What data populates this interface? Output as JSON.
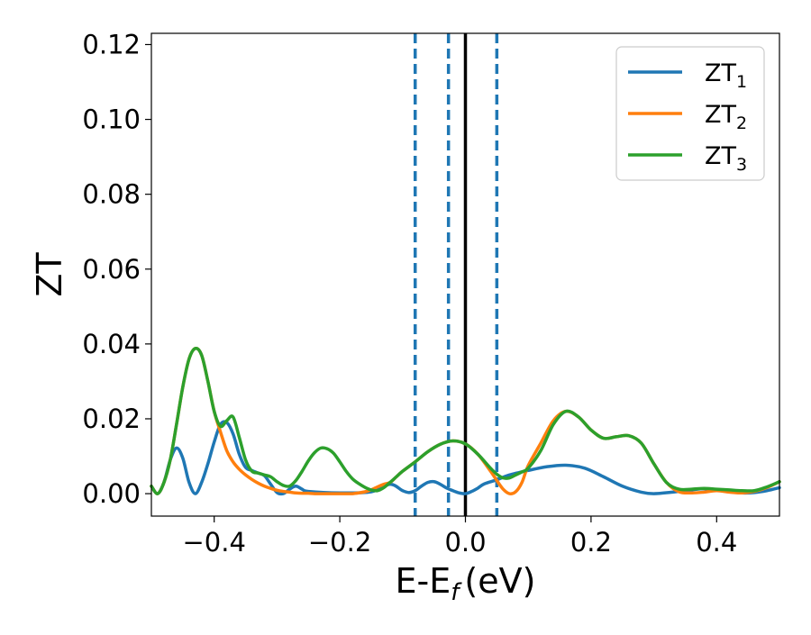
{
  "chart_data": {
    "type": "line",
    "title": "",
    "xlabel": "E-E",
    "xlabel_subscript": "f",
    "xlabel_unit": "(eV)",
    "ylabel": "ZT",
    "xlim": [
      -0.5,
      0.5
    ],
    "ylim": [
      -0.006,
      0.123
    ],
    "x_ticks": [
      -0.4,
      -0.2,
      0.0,
      0.2,
      0.4
    ],
    "x_tick_labels": [
      "−0.4",
      "−0.2",
      "0.0",
      "0.2",
      "0.4"
    ],
    "y_ticks": [
      0.0,
      0.02,
      0.04,
      0.06,
      0.08,
      0.1,
      0.12
    ],
    "y_tick_labels": [
      "0.00",
      "0.02",
      "0.04",
      "0.06",
      "0.08",
      "0.10",
      "0.12"
    ],
    "grid": false,
    "legend_position": "top-right",
    "vertical_lines": [
      {
        "x": -0.08,
        "style": "dashed",
        "color": "#1f77b4"
      },
      {
        "x": -0.027,
        "style": "dashed",
        "color": "#1f77b4"
      },
      {
        "x": 0.0,
        "style": "solid",
        "color": "#000000"
      },
      {
        "x": 0.05,
        "style": "dashed",
        "color": "#1f77b4"
      }
    ],
    "series": [
      {
        "name": "ZT",
        "subscript": "1",
        "color": "#1f77b4",
        "x": [
          -0.5,
          -0.49,
          -0.48,
          -0.47,
          -0.46,
          -0.45,
          -0.44,
          -0.43,
          -0.42,
          -0.41,
          -0.4,
          -0.39,
          -0.38,
          -0.37,
          -0.36,
          -0.35,
          -0.34,
          -0.33,
          -0.32,
          -0.31,
          -0.3,
          -0.29,
          -0.28,
          -0.27,
          -0.26,
          -0.25,
          -0.2,
          -0.15,
          -0.12,
          -0.1,
          -0.09,
          -0.08,
          -0.07,
          -0.06,
          -0.05,
          -0.04,
          -0.03,
          -0.02,
          -0.01,
          0.0,
          0.01,
          0.02,
          0.03,
          0.05,
          0.07,
          0.1,
          0.13,
          0.16,
          0.19,
          0.22,
          0.25,
          0.28,
          0.3,
          0.33,
          0.36,
          0.38,
          0.4,
          0.42,
          0.44,
          0.46,
          0.48,
          0.5
        ],
        "y": [
          0.002,
          0.0,
          0.003,
          0.009,
          0.0122,
          0.0095,
          0.003,
          0.0,
          0.003,
          0.008,
          0.0138,
          0.0185,
          0.019,
          0.016,
          0.0105,
          0.007,
          0.0062,
          0.0055,
          0.0048,
          0.0025,
          0.0003,
          0.0,
          0.0012,
          0.002,
          0.0012,
          0.0006,
          0.0002,
          0.0005,
          0.0025,
          0.0008,
          0.0003,
          0.0008,
          0.002,
          0.003,
          0.0032,
          0.0025,
          0.0015,
          0.0008,
          0.0002,
          0.0,
          0.0006,
          0.0015,
          0.0026,
          0.0037,
          0.005,
          0.0062,
          0.0072,
          0.0076,
          0.0068,
          0.0045,
          0.002,
          0.0004,
          0.0,
          0.0004,
          0.001,
          0.0013,
          0.001,
          0.0006,
          0.0002,
          0.0003,
          0.0008,
          0.0016
        ]
      },
      {
        "name": "ZT",
        "subscript": "2",
        "color": "#ff7f0e",
        "x": [
          -0.5,
          -0.49,
          -0.48,
          -0.47,
          -0.46,
          -0.45,
          -0.44,
          -0.43,
          -0.42,
          -0.41,
          -0.4,
          -0.39,
          -0.38,
          -0.37,
          -0.36,
          -0.35,
          -0.34,
          -0.33,
          -0.32,
          -0.31,
          -0.3,
          -0.29,
          -0.28,
          -0.27,
          -0.26,
          -0.25,
          -0.24,
          -0.23,
          -0.22,
          -0.21,
          -0.2,
          -0.19,
          -0.18,
          -0.17,
          -0.16,
          -0.15,
          -0.14,
          -0.13,
          -0.12,
          -0.11,
          -0.1,
          -0.08,
          -0.06,
          -0.04,
          -0.02,
          0.0,
          0.02,
          0.04,
          0.05,
          0.06,
          0.07,
          0.08,
          0.09,
          0.1,
          0.12,
          0.14,
          0.16,
          0.18,
          0.2,
          0.22,
          0.24,
          0.26,
          0.28,
          0.3,
          0.32,
          0.34,
          0.36,
          0.38,
          0.4,
          0.42,
          0.44,
          0.46,
          0.48,
          0.5
        ],
        "y": [
          0.002,
          0.0,
          0.003,
          0.009,
          0.0185,
          0.0285,
          0.036,
          0.0388,
          0.037,
          0.03,
          0.022,
          0.0165,
          0.0115,
          0.0085,
          0.0065,
          0.005,
          0.0038,
          0.0028,
          0.002,
          0.0014,
          0.0009,
          0.0006,
          0.0004,
          0.0002,
          0.0001,
          0.0001,
          0.0,
          0.0,
          0.0,
          0.0,
          0.0,
          0.0,
          0.0,
          0.0002,
          0.0005,
          0.001,
          0.0018,
          0.0025,
          0.003,
          0.0045,
          0.006,
          0.0085,
          0.0112,
          0.0132,
          0.0141,
          0.0133,
          0.0105,
          0.006,
          0.0035,
          0.0012,
          0.0,
          0.0005,
          0.003,
          0.0075,
          0.0135,
          0.0195,
          0.022,
          0.0205,
          0.017,
          0.0148,
          0.0152,
          0.0155,
          0.0135,
          0.008,
          0.003,
          0.0005,
          0.0002,
          0.0004,
          0.0008,
          0.0004,
          0.0002,
          0.0006,
          0.0016,
          0.0032
        ]
      },
      {
        "name": "ZT",
        "subscript": "3",
        "color": "#2ca02c",
        "x": [
          -0.5,
          -0.49,
          -0.48,
          -0.47,
          -0.46,
          -0.45,
          -0.44,
          -0.43,
          -0.42,
          -0.41,
          -0.4,
          -0.39,
          -0.38,
          -0.37,
          -0.36,
          -0.35,
          -0.34,
          -0.33,
          -0.32,
          -0.31,
          -0.3,
          -0.29,
          -0.28,
          -0.27,
          -0.26,
          -0.25,
          -0.24,
          -0.23,
          -0.22,
          -0.21,
          -0.2,
          -0.19,
          -0.18,
          -0.17,
          -0.16,
          -0.15,
          -0.14,
          -0.13,
          -0.12,
          -0.11,
          -0.1,
          -0.08,
          -0.06,
          -0.04,
          -0.02,
          0.0,
          0.02,
          0.04,
          0.05,
          0.06,
          0.07,
          0.08,
          0.09,
          0.1,
          0.12,
          0.14,
          0.16,
          0.18,
          0.2,
          0.22,
          0.24,
          0.26,
          0.28,
          0.3,
          0.32,
          0.34,
          0.36,
          0.38,
          0.4,
          0.42,
          0.44,
          0.46,
          0.48,
          0.5
        ],
        "y": [
          0.002,
          0.0,
          0.003,
          0.009,
          0.0185,
          0.0285,
          0.036,
          0.0388,
          0.037,
          0.03,
          0.022,
          0.018,
          0.0195,
          0.0205,
          0.015,
          0.009,
          0.006,
          0.0055,
          0.005,
          0.0045,
          0.0032,
          0.0022,
          0.002,
          0.0035,
          0.006,
          0.0088,
          0.011,
          0.0122,
          0.012,
          0.0108,
          0.0085,
          0.006,
          0.004,
          0.0027,
          0.0017,
          0.001,
          0.0008,
          0.0016,
          0.003,
          0.0045,
          0.006,
          0.0085,
          0.0112,
          0.0132,
          0.0141,
          0.0133,
          0.0105,
          0.0068,
          0.0052,
          0.0042,
          0.0042,
          0.005,
          0.0058,
          0.0068,
          0.0115,
          0.0185,
          0.022,
          0.0205,
          0.017,
          0.0148,
          0.0152,
          0.0155,
          0.0135,
          0.008,
          0.003,
          0.0012,
          0.0012,
          0.0014,
          0.0012,
          0.001,
          0.0008,
          0.0008,
          0.0018,
          0.0032
        ]
      }
    ]
  }
}
